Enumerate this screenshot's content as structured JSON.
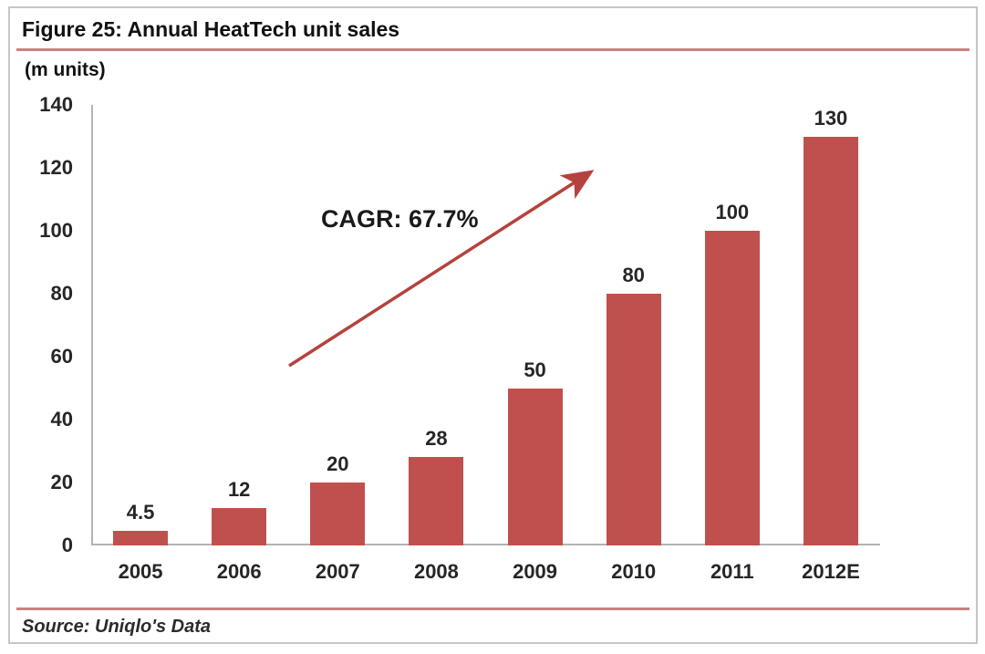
{
  "figure": {
    "title": "Figure 25: Annual HeatTech unit sales",
    "units_label": "(m units)",
    "annotation": "CAGR: 67.7%",
    "source": "Source: Uniqlo's Data"
  },
  "colors": {
    "bar": "#c0504d",
    "arrow": "#b5423e",
    "rule": "#c9827f",
    "axis": "#b3b3b3",
    "text": "#262626",
    "frame": "#c6c6c6"
  },
  "chart_data": {
    "type": "bar",
    "title": "Figure 25: Annual HeatTech unit sales",
    "categories": [
      "2005",
      "2006",
      "2007",
      "2008",
      "2009",
      "2010",
      "2011",
      "2012E"
    ],
    "values": [
      4.5,
      12,
      20,
      28,
      50,
      80,
      100,
      130
    ],
    "data_labels": [
      "4.5",
      "12",
      "20",
      "28",
      "50",
      "80",
      "100",
      "130"
    ],
    "xlabel": "",
    "ylabel": "(m units)",
    "ylim": [
      0,
      140
    ],
    "yticks": [
      0,
      20,
      40,
      60,
      80,
      100,
      120,
      140
    ],
    "grid": false,
    "legend": "none",
    "bar_color": "#c0504d",
    "annotation": {
      "text": "CAGR: 67.7%",
      "type": "trend-arrow"
    },
    "source": "Source: Uniqlo's Data"
  }
}
